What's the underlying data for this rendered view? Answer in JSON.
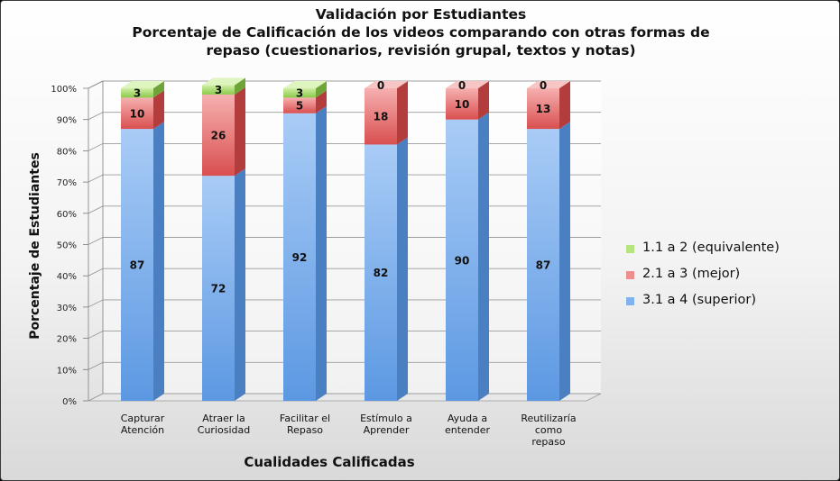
{
  "chart_data": {
    "type": "bar",
    "stacked": true,
    "title_lines": [
      "Validación por Estudiantes",
      "Porcentaje de Calificación de los videos comparando con otras formas de",
      "repaso (cuestionarios, revisión grupal, textos y notas)"
    ],
    "xlabel": "Cualidades Calificadas",
    "ylabel": "Porcentaje de Estudiantes",
    "ylim": [
      0,
      100
    ],
    "y_ticks": [
      "0%",
      "10%",
      "20%",
      "30%",
      "40%",
      "50%",
      "60%",
      "70%",
      "80%",
      "90%",
      "100%"
    ],
    "categories": [
      [
        "Capturar",
        "Atención"
      ],
      [
        "Atraer la",
        "Curiosidad"
      ],
      [
        "Facilitar el",
        "Repaso"
      ],
      [
        "Estímulo a",
        "Aprender"
      ],
      [
        "Ayuda a",
        "entender"
      ],
      [
        "Reutilizaría",
        "como",
        "repaso"
      ]
    ],
    "series": [
      {
        "name": "3.1 a 4 (superior)",
        "values": [
          87,
          72,
          92,
          82,
          90,
          87
        ],
        "color": "#7fb2ee"
      },
      {
        "name": "2.1 a 3 (mejor)",
        "values": [
          10,
          26,
          5,
          18,
          10,
          13
        ],
        "color": "#ee8f8f"
      },
      {
        "name": "1.1 a 2 (equivalente)",
        "values": [
          3,
          3,
          3,
          0,
          0,
          0
        ],
        "color": "#b7e57d"
      }
    ],
    "legend_order": [
      2,
      1,
      0
    ],
    "legend_position": "right",
    "grid": true
  }
}
